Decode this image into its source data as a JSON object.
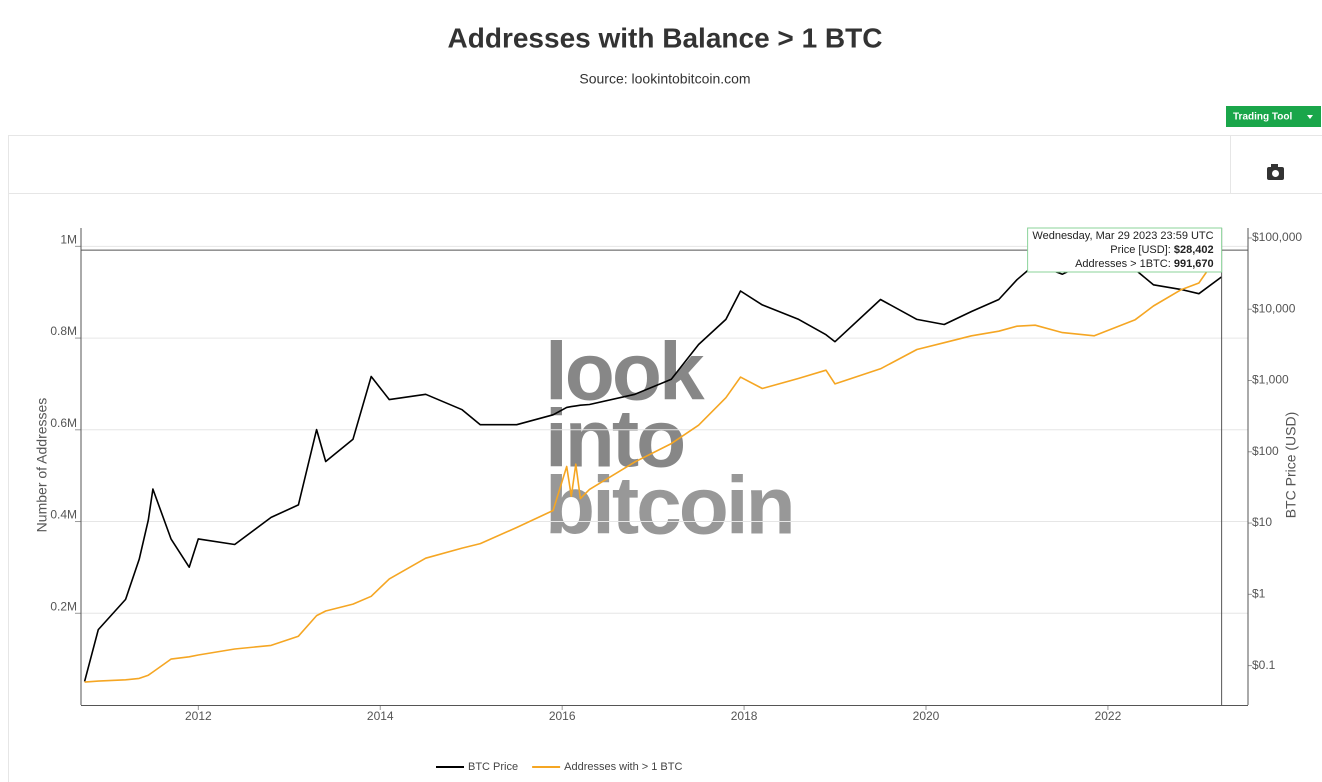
{
  "header": {
    "title": "Addresses with Balance > 1 BTC",
    "subtitle": "Source: lookintobitcoin.com",
    "button": "Trading Tool"
  },
  "watermark": [
    "look",
    "into",
    "bitcoin"
  ],
  "chart_data": {
    "type": "line",
    "x": [
      2010.75,
      2010.9,
      2011.2,
      2011.35,
      2011.45,
      2011.5,
      2011.7,
      2011.9,
      2012.0,
      2012.4,
      2012.8,
      2013.1,
      2013.3,
      2013.4,
      2013.7,
      2013.9,
      2014.1,
      2014.5,
      2014.9,
      2015.1,
      2015.5,
      2015.9,
      2016.05,
      2016.1,
      2016.15,
      2016.2,
      2016.3,
      2016.8,
      2017.2,
      2017.5,
      2017.8,
      2017.96,
      2018.2,
      2018.6,
      2018.9,
      2019.0,
      2019.5,
      2019.9,
      2020.2,
      2020.5,
      2020.8,
      2021.0,
      2021.2,
      2021.5,
      2021.85,
      2022.3,
      2022.5,
      2022.8,
      2023.0,
      2023.25
    ],
    "series": [
      {
        "name": "BTC Price",
        "color": "#000000",
        "axis": "y2",
        "values": [
          0.06,
          0.32,
          0.85,
          3.1,
          11,
          30,
          6,
          2.4,
          6,
          5,
          12,
          18,
          205,
          73,
          150,
          1140,
          540,
          640,
          390,
          240,
          240,
          330,
          420,
          430,
          440,
          450,
          460,
          640,
          1040,
          3200,
          7200,
          18000,
          11500,
          7200,
          4400,
          3500,
          13700,
          7200,
          6100,
          9300,
          13700,
          26000,
          43000,
          31000,
          50000,
          36000,
          22000,
          19000,
          16500,
          28402
        ]
      },
      {
        "name": "Addresses with > 1 BTC",
        "color": "#f5a623",
        "values": [
          50000,
          52000,
          55000,
          58000,
          65000,
          72000,
          100000,
          105000,
          109000,
          122000,
          130000,
          150000,
          195000,
          205000,
          220000,
          237000,
          275000,
          320000,
          342000,
          352000,
          387000,
          424000,
          520000,
          455000,
          525000,
          450000,
          470000,
          530000,
          570000,
          610000,
          670000,
          715000,
          690000,
          712000,
          730000,
          700000,
          733000,
          775000,
          790000,
          805000,
          815000,
          826000,
          828000,
          812000,
          805000,
          840000,
          870000,
          905000,
          920000,
          991670
        ]
      }
    ],
    "xlim": [
      2010.71,
      2023.54
    ],
    "xticks": [
      2012,
      2014,
      2016,
      2018,
      2020,
      2022
    ],
    "ylim": [
      0,
      1040000
    ],
    "yticks": [
      {
        "value": 200000,
        "label": "0.2M"
      },
      {
        "value": 400000,
        "label": "0.4M"
      },
      {
        "value": 600000,
        "label": "0.6M"
      },
      {
        "value": 800000,
        "label": "0.8M"
      },
      {
        "value": 1000000,
        "label": "1M"
      }
    ],
    "y2lim": [
      0.028,
      138000
    ],
    "y2log": true,
    "y2ticks": [
      {
        "value": 0.1,
        "label": "$0.1"
      },
      {
        "value": 1,
        "label": "$1"
      },
      {
        "value": 10,
        "label": "$10"
      },
      {
        "value": 100,
        "label": "$100"
      },
      {
        "value": 1000,
        "label": "$1,000"
      },
      {
        "value": 10000,
        "label": "$10,000"
      },
      {
        "value": 100000,
        "label": "$100,000"
      }
    ],
    "ylabel": "Number of Addresses",
    "y2label": "BTC Price (USD)",
    "grid": true,
    "legend": "bottom",
    "tooltip": {
      "title": "Wednesday, Mar 29 2023 23:59 UTC",
      "rows": [
        {
          "label": "Price [USD]:",
          "value": "$28,402"
        },
        {
          "label": "Addresses > 1BTC:",
          "value": "991,670"
        }
      ]
    }
  }
}
